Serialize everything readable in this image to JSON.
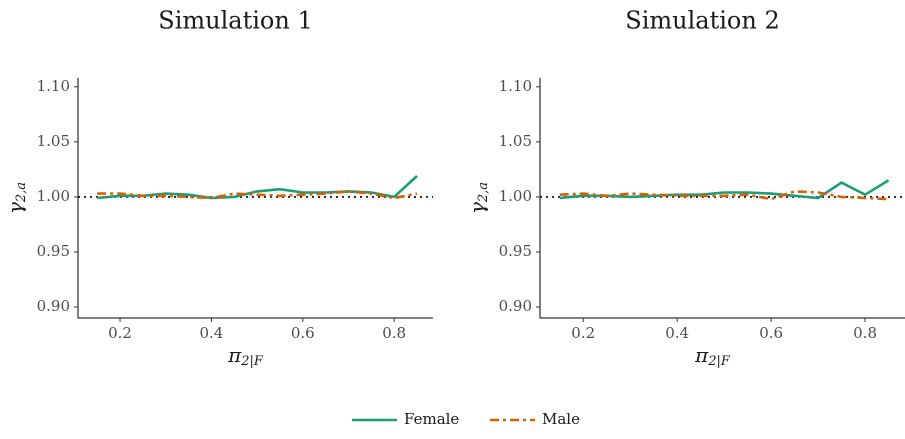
{
  "chart_data": [
    {
      "type": "line",
      "title": "Simulation 1",
      "xlabel": {
        "symbol": "π",
        "subscript": "2|F"
      },
      "ylabel": {
        "symbol": "γ",
        "subscript": "2,a"
      },
      "x": [
        0.15,
        0.2,
        0.25,
        0.3,
        0.35,
        0.4,
        0.45,
        0.5,
        0.55,
        0.6,
        0.65,
        0.7,
        0.75,
        0.8,
        0.85
      ],
      "series": [
        {
          "name": "Female",
          "color": "#1b9e77",
          "values": [
            0.999,
            1.001,
            1.001,
            1.003,
            1.002,
            0.999,
            1.0,
            1.005,
            1.007,
            1.004,
            1.004,
            1.005,
            1.004,
            1.0,
            1.019
          ]
        },
        {
          "name": "Male",
          "color": "#d95f02",
          "values": [
            1.003,
            1.003,
            1.001,
            1.001,
            1.0,
            0.999,
            1.003,
            1.002,
            1.001,
            1.002,
            1.003,
            1.005,
            1.003,
            0.999,
            1.003
          ]
        }
      ],
      "xlim": [
        0.108,
        0.885
      ],
      "xticks": [
        0.2,
        0.4,
        0.6,
        0.8
      ],
      "ylim": [
        0.89,
        1.108
      ],
      "yticks": [
        {
          "value": 0.9,
          "label": "0.90"
        },
        {
          "value": 0.95,
          "label": "0.95"
        },
        {
          "value": 1.0,
          "label": "1.00"
        },
        {
          "value": 1.05,
          "label": "1.05"
        },
        {
          "value": 1.1,
          "label": "1.10"
        }
      ],
      "hline": 1.0
    },
    {
      "type": "line",
      "title": "Simulation 2",
      "xlabel": {
        "symbol": "π",
        "subscript": "2|F"
      },
      "ylabel": {
        "symbol": "γ",
        "subscript": "2,a"
      },
      "x": [
        0.15,
        0.2,
        0.25,
        0.3,
        0.35,
        0.4,
        0.45,
        0.5,
        0.55,
        0.6,
        0.65,
        0.7,
        0.75,
        0.8,
        0.85
      ],
      "series": [
        {
          "name": "Female",
          "color": "#1b9e77",
          "values": [
            0.999,
            1.001,
            1.001,
            1.0,
            1.001,
            1.002,
            1.002,
            1.004,
            1.004,
            1.003,
            1.001,
            0.999,
            1.013,
            1.002,
            1.015
          ]
        },
        {
          "name": "Male",
          "color": "#d95f02",
          "values": [
            1.002,
            1.003,
            1.001,
            1.003,
            1.002,
            1.001,
            1.001,
            1.001,
            1.002,
            0.998,
            1.005,
            1.004,
            1.0,
            0.999,
            0.998
          ]
        }
      ],
      "xlim": [
        0.108,
        0.885
      ],
      "xticks": [
        0.2,
        0.4,
        0.6,
        0.8
      ],
      "ylim": [
        0.89,
        1.108
      ],
      "yticks": [
        {
          "value": 0.9,
          "label": "0.90"
        },
        {
          "value": 0.95,
          "label": "0.95"
        },
        {
          "value": 1.0,
          "label": "1.00"
        },
        {
          "value": 1.05,
          "label": "1.05"
        },
        {
          "value": 1.1,
          "label": "1.10"
        }
      ],
      "hline": 1.0
    }
  ]
}
